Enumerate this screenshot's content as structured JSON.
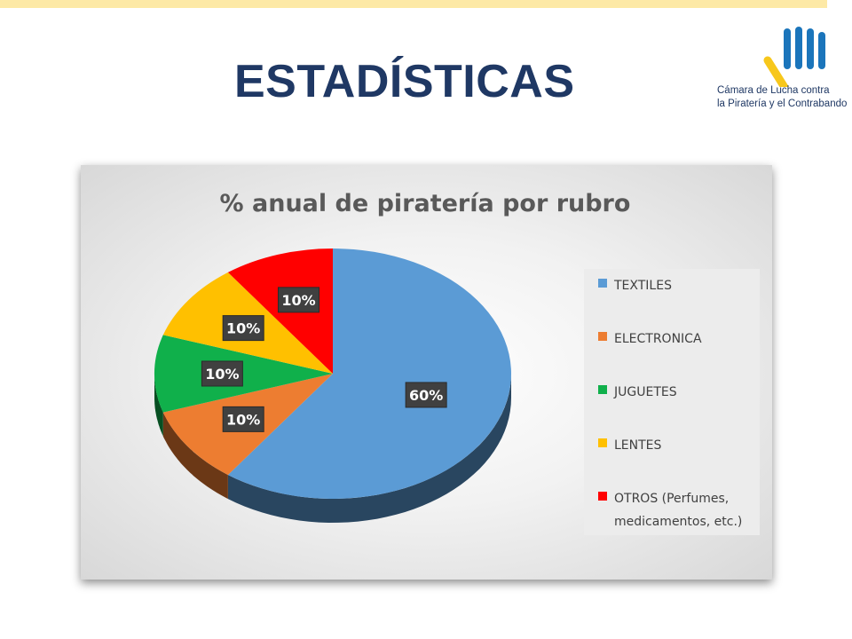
{
  "slide": {
    "title": "ESTADÍSTICAS",
    "accent_bar_color": "#fde9a6",
    "title_color": "#1f3864"
  },
  "logo": {
    "icon": "bars-logo-icon",
    "line1": "Cámara de Lucha contra",
    "line2": "la Piratería y el Contrabando",
    "colors": {
      "bars": "#1b75bb",
      "accent": "#f7c71b"
    }
  },
  "chart_data": {
    "type": "pie",
    "title": "% anual de piratería por rubro",
    "style": "3d",
    "legend_position": "right",
    "slices": [
      {
        "label": "TEXTILES",
        "value": 60,
        "data_label": "60%",
        "color": "#5b9bd5"
      },
      {
        "label": "ELECTRONICA",
        "value": 10,
        "data_label": "10%",
        "color": "#ed7d31"
      },
      {
        "label": "JUGUETES",
        "value": 10,
        "data_label": "10%",
        "color": "#10b04b"
      },
      {
        "label": "LENTES",
        "value": 10,
        "data_label": "10%",
        "color": "#ffc000"
      },
      {
        "label": "OTROS (Perfumes, medicamentos, etc.)",
        "value": 10,
        "data_label": "10%",
        "color": "#ff0000"
      }
    ],
    "legend_lines": [
      [
        "TEXTILES"
      ],
      [
        "ELECTRONICA"
      ],
      [
        "JUGUETES"
      ],
      [
        "LENTES"
      ],
      [
        "OTROS (Perfumes,",
        "medicamentos, etc.)"
      ]
    ]
  }
}
